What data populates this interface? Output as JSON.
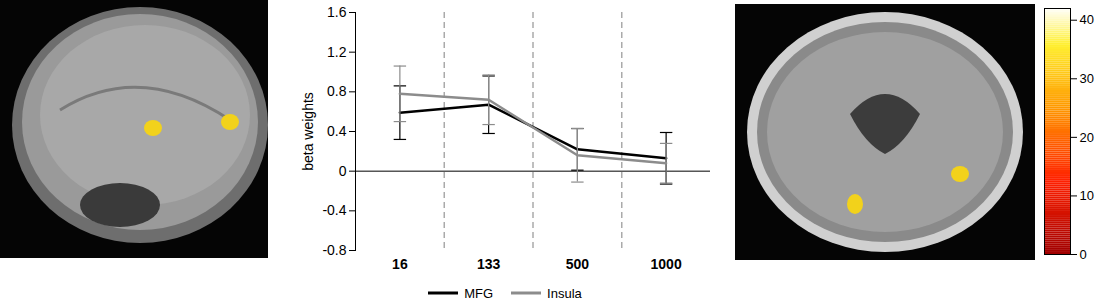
{
  "chart_data": {
    "type": "line",
    "y_label": "beta weights",
    "categories": [
      "16",
      "133",
      "500",
      "1000"
    ],
    "ylim": [
      -0.8,
      1.6
    ],
    "yticks": [
      -0.8,
      -0.4,
      0,
      0.4,
      0.8,
      1.2,
      1.6
    ],
    "legend": "bottom",
    "series": [
      {
        "name": "MFG",
        "color": "#000000",
        "values": [
          0.59,
          0.67,
          0.22,
          0.13
        ],
        "errors": [
          0.27,
          0.29,
          0.21,
          0.26
        ]
      },
      {
        "name": "Insula",
        "color": "#8c8c8c",
        "values": [
          0.78,
          0.72,
          0.16,
          0.08
        ],
        "errors": [
          0.28,
          0.25,
          0.27,
          0.2
        ]
      }
    ],
    "colorbar": {
      "range": [
        0,
        42
      ],
      "ticks": [
        0,
        10,
        20,
        30,
        40
      ]
    }
  }
}
